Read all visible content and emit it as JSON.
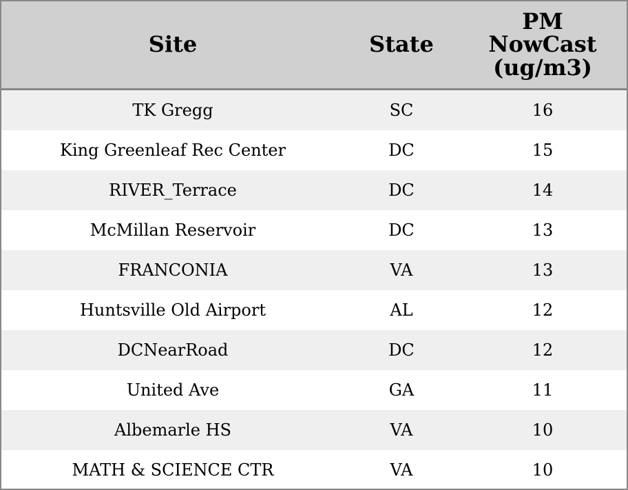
{
  "table": {
    "headers": [
      "Site",
      "State",
      "PM NowCast (ug/m3)"
    ],
    "rows": [
      [
        "TK Gregg",
        "SC",
        16
      ],
      [
        "King Greenleaf Rec Center",
        "DC",
        15
      ],
      [
        "RIVER_Terrace",
        "DC",
        14
      ],
      [
        "McMillan Reservoir",
        "DC",
        13
      ],
      [
        "FRANCONIA",
        "VA",
        13
      ],
      [
        "Huntsville Old Airport",
        "AL",
        12
      ],
      [
        "DCNearRoad",
        "DC",
        12
      ],
      [
        "United Ave",
        "GA",
        11
      ],
      [
        "Albemarle HS",
        "VA",
        10
      ],
      [
        "MATH & SCIENCE CTR",
        "VA",
        10
      ]
    ]
  }
}
